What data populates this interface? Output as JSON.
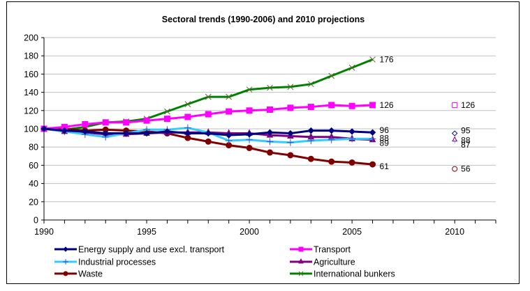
{
  "chart_data": {
    "type": "line",
    "title": "Sectoral trends (1990-2006) and 2010 projections",
    "xlabel": "",
    "ylabel": "",
    "xlim": [
      1990,
      2012
    ],
    "ylim": [
      0,
      200
    ],
    "x_ticks": [
      1990,
      1995,
      2000,
      2005,
      2010
    ],
    "x_tick_labels": [
      "1990",
      "1995",
      "2000",
      "2005",
      "2010"
    ],
    "y_ticks": [
      0,
      20,
      40,
      60,
      80,
      100,
      120,
      140,
      160,
      180,
      200
    ],
    "y_tick_labels": [
      "0",
      "20",
      "40",
      "60",
      "80",
      "100",
      "120",
      "140",
      "160",
      "180",
      "200"
    ],
    "grid": "horizontal",
    "legend_position": "bottom",
    "x": [
      1990,
      1991,
      1992,
      1993,
      1994,
      1995,
      1996,
      1997,
      1998,
      1999,
      2000,
      2001,
      2002,
      2003,
      2004,
      2005,
      2006
    ],
    "series": [
      {
        "name": "Energy supply and use excl. transport",
        "color": "#000080",
        "marker": "diamond",
        "values": [
          100,
          98,
          97,
          95,
          95,
          95,
          97,
          95,
          95,
          93,
          94,
          96,
          95,
          98,
          98,
          97,
          96
        ],
        "end_label": "96",
        "projection_2010": 95,
        "projection_label": "95"
      },
      {
        "name": "Transport",
        "color": "#ff00ff",
        "marker": "square",
        "values": [
          100,
          102,
          105,
          107,
          107,
          109,
          111,
          113,
          116,
          119,
          120,
          121,
          123,
          124,
          126,
          125,
          126
        ],
        "end_label": "126",
        "projection_2010": 126,
        "projection_label": "126"
      },
      {
        "name": "Industrial processes",
        "color": "#33ccff",
        "marker": "plus",
        "values": [
          100,
          97,
          94,
          91,
          95,
          99,
          99,
          101,
          96,
          87,
          88,
          86,
          85,
          87,
          88,
          89,
          89
        ],
        "end_label": "89",
        "projection_2010": 87,
        "projection_label": "87"
      },
      {
        "name": "Agriculture",
        "color": "#800080",
        "marker": "triangle",
        "values": [
          100,
          97,
          96,
          94,
          94,
          95,
          96,
          96,
          96,
          95,
          95,
          93,
          92,
          91,
          91,
          89,
          88
        ],
        "end_label": "88",
        "projection_2010": 88,
        "projection_label": "88"
      },
      {
        "name": "Waste",
        "color": "#800000",
        "marker": "circle",
        "values": [
          100,
          100,
          98,
          99,
          98,
          97,
          95,
          90,
          86,
          82,
          79,
          74,
          71,
          67,
          64,
          63,
          61
        ],
        "end_label": "61",
        "projection_2010": 56,
        "projection_label": "56"
      },
      {
        "name": "International bunkers",
        "color": "#008000",
        "marker": "x",
        "values": [
          100,
          99,
          102,
          107,
          108,
          111,
          119,
          127,
          135,
          135,
          143,
          145,
          146,
          149,
          158,
          167,
          176
        ],
        "end_label": "176",
        "projection_2010": null,
        "projection_label": null
      }
    ]
  }
}
